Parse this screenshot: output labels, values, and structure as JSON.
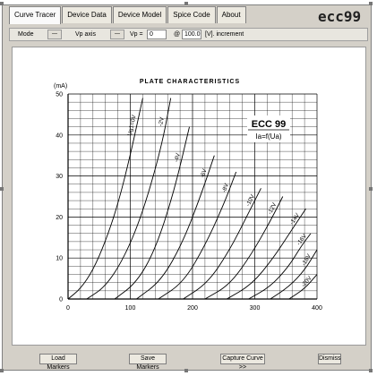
{
  "tabs": [
    {
      "label": "Curve Tracer",
      "active": true
    },
    {
      "label": "Device Data",
      "active": false
    },
    {
      "label": "Device Model",
      "active": false
    },
    {
      "label": "Spice Code",
      "active": false
    },
    {
      "label": "About",
      "active": false
    }
  ],
  "app_logo": "ecc99",
  "toolbar": {
    "mode_label": "Mode",
    "vp_axis_label": "Vp axis",
    "vp_label": "Vp =",
    "vp_value": "0",
    "at_label": "@",
    "increment_value": "100.0",
    "increment_label": "[V]. increment"
  },
  "buttons": {
    "load_markers": "Load Markers",
    "save_markers": "Save Markers",
    "capture_curve": "Capture Curve >>",
    "dismiss": "Dismiss"
  },
  "chart_data": {
    "type": "line",
    "title": "PLATE CHARACTERISTICS",
    "ylabel": "(mA)",
    "xlabel": "",
    "xlim": [
      0,
      400
    ],
    "ylim": [
      0,
      50
    ],
    "x_ticks": [
      "0",
      "100",
      "200",
      "300",
      "400"
    ],
    "y_ticks": [
      "0",
      "10",
      "20",
      "30",
      "40",
      "50"
    ],
    "grid": true,
    "device_box": {
      "name": "ECC 99",
      "formula": "Ia=f(Ua)"
    },
    "series": [
      {
        "name": "Ug1=0V",
        "x": [
          0,
          20,
          40,
          60,
          80,
          100,
          120
        ],
        "y": [
          0,
          2.5,
          7,
          14,
          23,
          35,
          49
        ]
      },
      {
        "name": "-2V",
        "x": [
          30,
          60,
          90,
          120,
          150,
          165
        ],
        "y": [
          0,
          3,
          10,
          21,
          37,
          49
        ]
      },
      {
        "name": "-4V",
        "x": [
          75,
          110,
          140,
          170,
          195
        ],
        "y": [
          0,
          4,
          12,
          26,
          42
        ]
      },
      {
        "name": "-6V",
        "x": [
          110,
          150,
          185,
          215,
          235
        ],
        "y": [
          0,
          4.5,
          14,
          26,
          35
        ]
      },
      {
        "name": "-8V",
        "x": [
          145,
          185,
          220,
          250,
          270
        ],
        "y": [
          0,
          4,
          13,
          23,
          31
        ]
      },
      {
        "name": "-10V",
        "x": [
          185,
          225,
          260,
          290,
          310
        ],
        "y": [
          0,
          4,
          12,
          21,
          27
        ]
      },
      {
        "name": "-12V",
        "x": [
          220,
          260,
          295,
          325,
          345
        ],
        "y": [
          0,
          3.5,
          11,
          19,
          25
        ]
      },
      {
        "name": "-14V",
        "x": [
          255,
          295,
          330,
          360,
          382
        ],
        "y": [
          0,
          3.5,
          10,
          17,
          22
        ]
      },
      {
        "name": "-16V",
        "x": [
          290,
          325,
          355,
          375,
          390
        ],
        "y": [
          0,
          3,
          8,
          13,
          16
        ]
      },
      {
        "name": "-18V",
        "x": [
          325,
          355,
          380,
          400
        ],
        "y": [
          0,
          3,
          7,
          12
        ]
      },
      {
        "name": "-20V",
        "x": [
          355,
          380,
          400
        ],
        "y": [
          0,
          2.5,
          6
        ]
      }
    ]
  }
}
